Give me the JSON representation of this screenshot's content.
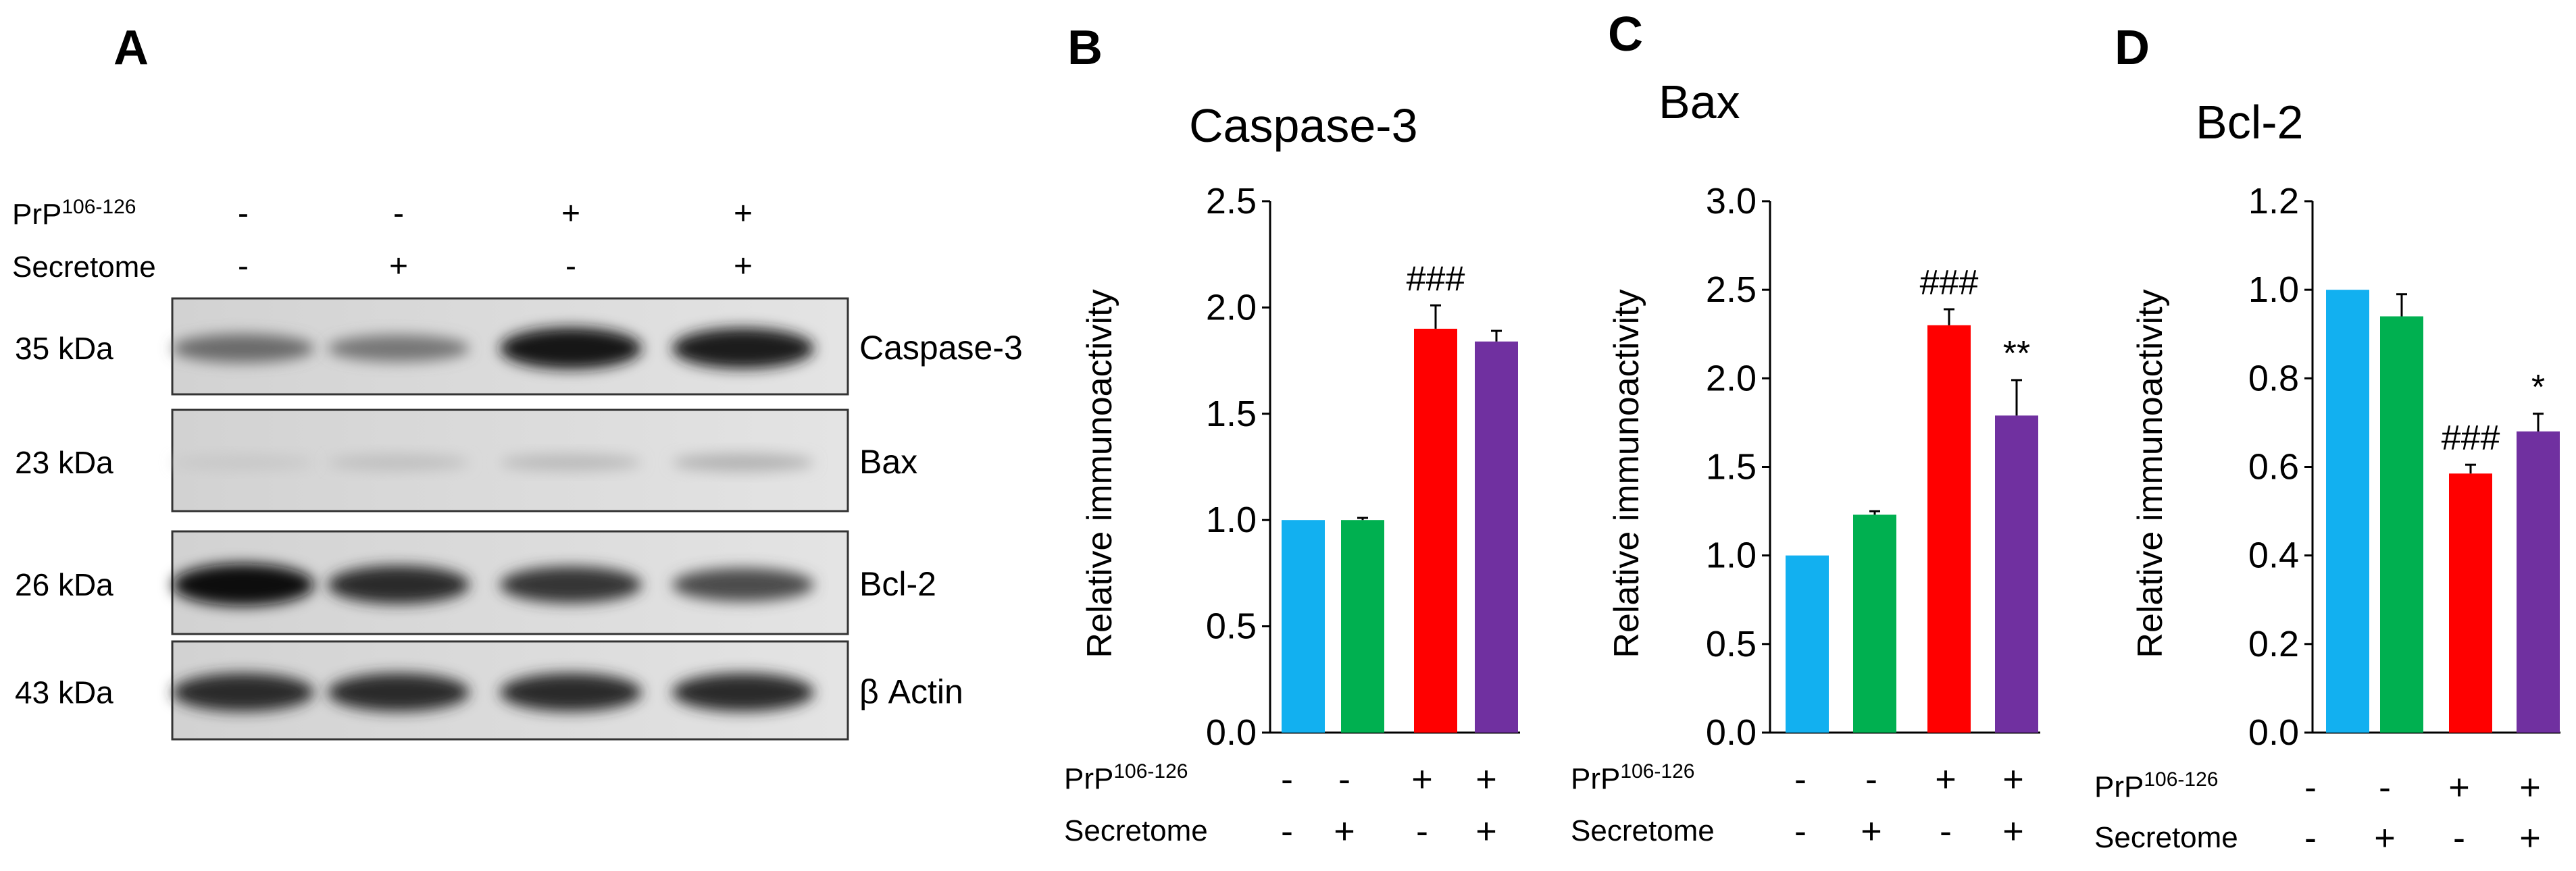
{
  "blot": {
    "panel_label": "A",
    "prp_label": "PrP",
    "prp_sup": "106-126",
    "secretome_label": "Secretome",
    "prp_signs": [
      "-",
      "-",
      "+",
      "+"
    ],
    "secretome_signs": [
      "-",
      "+",
      "-",
      "+"
    ],
    "rows": [
      {
        "kda": "35 kDa",
        "protein": "Caspase-3",
        "bands": [
          0.55,
          0.5,
          0.95,
          0.92
        ]
      },
      {
        "kda": "23 kDa",
        "protein": "Bax",
        "bands": [
          0.12,
          0.16,
          0.18,
          0.22
        ]
      },
      {
        "kda": "26 kDa",
        "protein": "Bcl-2",
        "bands": [
          0.98,
          0.85,
          0.8,
          0.7
        ]
      },
      {
        "kda": "43 kDa",
        "protein": "β Actin",
        "bands": [
          0.85,
          0.85,
          0.85,
          0.85
        ]
      }
    ]
  },
  "legend_rows": {
    "prp_label": "PrP",
    "prp_sup": "106-126",
    "secretome_label": "Secretome",
    "prp_signs": [
      "-",
      "-",
      "+",
      "+"
    ],
    "secretome_signs": [
      "-",
      "+",
      "-",
      "+"
    ]
  },
  "bar_colors": [
    "#12b0f0",
    "#00b050",
    "#ff0000",
    "#7030a0"
  ],
  "chart_data": [
    {
      "type": "bar",
      "panel_label": "B",
      "title": "Caspase-3",
      "xlabel": "",
      "ylabel": "Relative immunoactivity",
      "ylim": [
        0,
        2.5
      ],
      "yticks": [
        "0.0",
        "0.5",
        "1.0",
        "1.5",
        "2.0",
        "2.5"
      ],
      "values": [
        1.0,
        1.0,
        1.9,
        1.84
      ],
      "errors": [
        0.0,
        0.01,
        0.11,
        0.05
      ],
      "annotations": [
        "",
        "",
        "###",
        ""
      ]
    },
    {
      "type": "bar",
      "panel_label": "C",
      "title": "Bax",
      "xlabel": "",
      "ylabel": "Relative immunoactivity",
      "ylim": [
        0,
        3.0
      ],
      "yticks": [
        "0.0",
        "0.5",
        "1.0",
        "1.5",
        "2.0",
        "2.5",
        "3.0"
      ],
      "values": [
        1.0,
        1.23,
        2.3,
        1.79
      ],
      "errors": [
        0.0,
        0.02,
        0.09,
        0.2
      ],
      "annotations": [
        "",
        "",
        "###",
        "**"
      ]
    },
    {
      "type": "bar",
      "panel_label": "D",
      "title": "Bcl-2",
      "xlabel": "",
      "ylabel": "Relative immunoactivity",
      "ylim": [
        0,
        1.2
      ],
      "yticks": [
        "0.0",
        "0.2",
        "0.4",
        "0.6",
        "0.8",
        "1.0",
        "1.2"
      ],
      "values": [
        1.0,
        0.94,
        0.585,
        0.68
      ],
      "errors": [
        0.0,
        0.05,
        0.02,
        0.04
      ],
      "annotations": [
        "",
        "",
        "###",
        "*"
      ]
    }
  ]
}
